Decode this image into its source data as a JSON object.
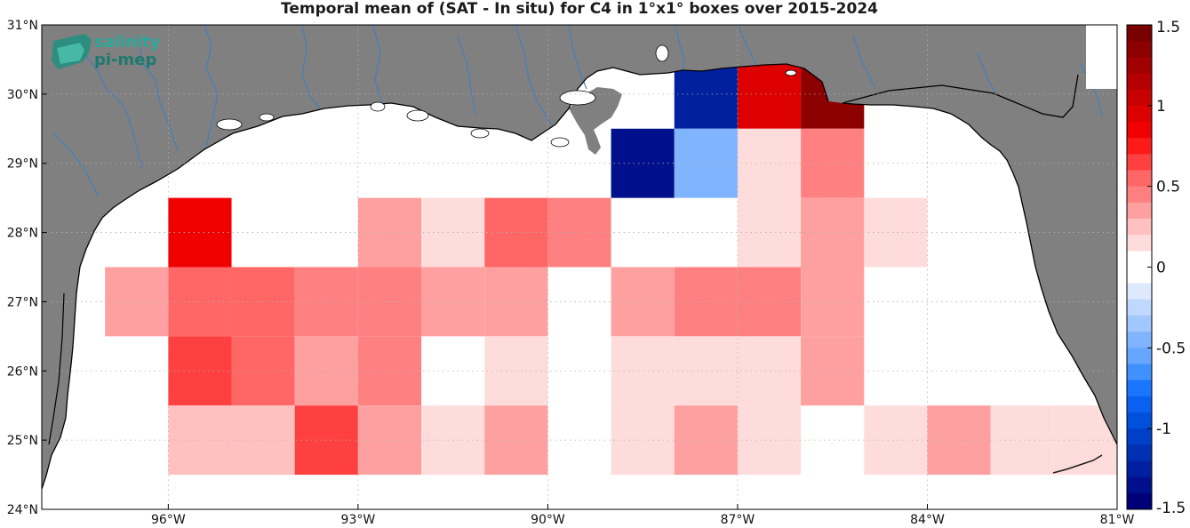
{
  "title": "Temporal mean of (SAT - In situ) for C4 in 1°x1° boxes over 2015-2024",
  "logo": {
    "line1": "salinity",
    "line2": "pi-mep"
  },
  "map": {
    "lon_range": [
      -98,
      -81
    ],
    "lat_range": [
      24,
      31
    ],
    "x_ticks": [
      {
        "lon": -96,
        "label": "96°W"
      },
      {
        "lon": -93,
        "label": "93°W"
      },
      {
        "lon": -90,
        "label": "90°W"
      },
      {
        "lon": -87,
        "label": "87°W"
      },
      {
        "lon": -84,
        "label": "84°W"
      },
      {
        "lon": -81,
        "label": "81°W"
      }
    ],
    "y_ticks": [
      {
        "lat": 24,
        "label": "24°N"
      },
      {
        "lat": 25,
        "label": "25°N"
      },
      {
        "lat": 26,
        "label": "26°N"
      },
      {
        "lat": 27,
        "label": "27°N"
      },
      {
        "lat": 28,
        "label": "28°N"
      },
      {
        "lat": 29,
        "label": "29°N"
      },
      {
        "lat": 30,
        "label": "30°N"
      },
      {
        "lat": 31,
        "label": "31°N"
      }
    ],
    "grid": "dotted",
    "land_color": "#808080",
    "river_color": "#3f7fbf"
  },
  "boxes": [
    {
      "lon": -95.5,
      "lat": 28.0,
      "value": 0.8
    },
    {
      "lon": -92.5,
      "lat": 28.0,
      "value": 0.3
    },
    {
      "lon": -91.5,
      "lat": 28.0,
      "value": 0.18
    },
    {
      "lon": -90.5,
      "lat": 28.0,
      "value": 0.6
    },
    {
      "lon": -89.5,
      "lat": 28.0,
      "value": 0.45
    },
    {
      "lon": -88.5,
      "lat": 29.0,
      "value": -1.35
    },
    {
      "lon": -87.5,
      "lat": 30.0,
      "value": -1.2
    },
    {
      "lon": -87.5,
      "lat": 29.0,
      "value": -0.45
    },
    {
      "lon": -86.5,
      "lat": 30.0,
      "value": 1.0
    },
    {
      "lon": -85.5,
      "lat": 30.0,
      "value": 1.35
    },
    {
      "lon": -86.5,
      "lat": 29.0,
      "value": 0.2
    },
    {
      "lon": -85.5,
      "lat": 29.0,
      "value": 0.45
    },
    {
      "lon": -86.5,
      "lat": 28.0,
      "value": 0.18
    },
    {
      "lon": -85.5,
      "lat": 28.0,
      "value": 0.3
    },
    {
      "lon": -84.5,
      "lat": 28.0,
      "value": 0.2
    },
    {
      "lon": -96.5,
      "lat": 27.0,
      "value": 0.4
    },
    {
      "lon": -95.5,
      "lat": 27.0,
      "value": 0.55
    },
    {
      "lon": -94.5,
      "lat": 27.0,
      "value": 0.55
    },
    {
      "lon": -93.5,
      "lat": 27.0,
      "value": 0.45
    },
    {
      "lon": -92.5,
      "lat": 27.0,
      "value": 0.45
    },
    {
      "lon": -91.5,
      "lat": 27.0,
      "value": 0.3
    },
    {
      "lon": -90.5,
      "lat": 27.0,
      "value": 0.3
    },
    {
      "lon": -88.5,
      "lat": 27.0,
      "value": 0.3
    },
    {
      "lon": -87.5,
      "lat": 27.0,
      "value": 0.45
    },
    {
      "lon": -86.5,
      "lat": 27.0,
      "value": 0.45
    },
    {
      "lon": -85.5,
      "lat": 27.0,
      "value": 0.3
    },
    {
      "lon": -95.5,
      "lat": 26.0,
      "value": 0.65
    },
    {
      "lon": -94.5,
      "lat": 26.0,
      "value": 0.55
    },
    {
      "lon": -93.5,
      "lat": 26.0,
      "value": 0.3
    },
    {
      "lon": -92.5,
      "lat": 26.0,
      "value": 0.45
    },
    {
      "lon": -90.5,
      "lat": 26.0,
      "value": 0.18
    },
    {
      "lon": -88.5,
      "lat": 26.0,
      "value": 0.18
    },
    {
      "lon": -87.5,
      "lat": 26.0,
      "value": 0.18
    },
    {
      "lon": -86.5,
      "lat": 26.0,
      "value": 0.18
    },
    {
      "lon": -85.5,
      "lat": 26.0,
      "value": 0.3
    },
    {
      "lon": -95.5,
      "lat": 25.0,
      "value": 0.25
    },
    {
      "lon": -94.5,
      "lat": 25.0,
      "value": 0.25
    },
    {
      "lon": -93.5,
      "lat": 25.0,
      "value": 0.65
    },
    {
      "lon": -92.5,
      "lat": 25.0,
      "value": 0.3
    },
    {
      "lon": -91.5,
      "lat": 25.0,
      "value": 0.18
    },
    {
      "lon": -90.5,
      "lat": 25.0,
      "value": 0.3
    },
    {
      "lon": -88.5,
      "lat": 25.0,
      "value": 0.18
    },
    {
      "lon": -87.5,
      "lat": 25.0,
      "value": 0.3
    },
    {
      "lon": -86.5,
      "lat": 25.0,
      "value": 0.18
    },
    {
      "lon": -84.5,
      "lat": 25.0,
      "value": 0.18
    },
    {
      "lon": -83.5,
      "lat": 25.0,
      "value": 0.3
    },
    {
      "lon": -82.5,
      "lat": 25.0,
      "value": 0.18
    },
    {
      "lon": -81.5,
      "lat": 25.0,
      "value": 0.18
    }
  ],
  "colorbar": {
    "range": [
      -1.5,
      1.5
    ],
    "ticks": [
      {
        "value": 1.5,
        "label": "1.5"
      },
      {
        "value": 1,
        "label": "1"
      },
      {
        "value": 0.5,
        "label": "0.5"
      },
      {
        "value": 0,
        "label": "0"
      },
      {
        "value": -0.5,
        "label": "-0.5"
      },
      {
        "value": -1,
        "label": "-1"
      },
      {
        "value": -1.5,
        "label": "-1.5"
      }
    ],
    "colors_top_to_bottom": [
      "#7a0000",
      "#8c0000",
      "#a00000",
      "#b40000",
      "#c80000",
      "#dc0000",
      "#f00000",
      "#ff1a1a",
      "#ff4040",
      "#ff6666",
      "#ff8080",
      "#ffa0a0",
      "#ffc0c0",
      "#ffdcdc",
      "#ffffff",
      "#ffffff",
      "#dce9ff",
      "#c0d8ff",
      "#a0c8ff",
      "#80b4ff",
      "#66a6ff",
      "#4090ff",
      "#1a75ff",
      "#0a60f0",
      "#0050dc",
      "#0040c8",
      "#0030b4",
      "#0020a0",
      "#00108c",
      "#000078"
    ]
  }
}
